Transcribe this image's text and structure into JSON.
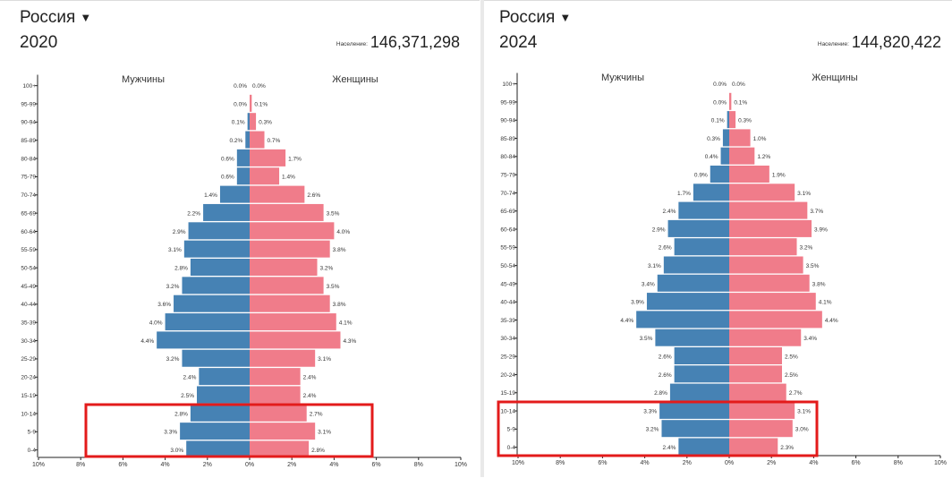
{
  "panels": [
    {
      "country": "Россия",
      "year": "2020",
      "population_label": "Население:",
      "population_value": "146,371,298"
    },
    {
      "country": "Россия",
      "year": "2024",
      "population_label": "Население:",
      "population_value": "144,820,422"
    }
  ],
  "chart_data": [
    {
      "type": "bar",
      "title": "Россия 2020",
      "orientation": "horizontal-pyramid",
      "male_label": "Мужчины",
      "female_label": "Женщины",
      "categories": [
        "100+",
        "95-99",
        "90-94",
        "85-89",
        "80-84",
        "75-79",
        "70-74",
        "65-69",
        "60-64",
        "55-59",
        "50-54",
        "45-49",
        "40-44",
        "35-39",
        "30-34",
        "25-29",
        "20-24",
        "15-19",
        "10-14",
        "5-9",
        "0-4"
      ],
      "series": [
        {
          "name": "Мужчины",
          "color": "#4682b4",
          "values": [
            0.0,
            0.0,
            0.1,
            0.2,
            0.6,
            0.6,
            1.4,
            2.2,
            2.9,
            3.1,
            2.8,
            3.2,
            3.6,
            4.0,
            4.4,
            3.2,
            2.4,
            2.5,
            2.8,
            3.3,
            3.0
          ],
          "labels": [
            "0.0%",
            "0.0%",
            "0.1%",
            "0.2%",
            "0.6%",
            "0.6%",
            "1.4%",
            "2.2%",
            "2.9%",
            "3.1%",
            "2.8%",
            "3.2%",
            "3.6%",
            "4.0%",
            "4.4%",
            "3.2%",
            "2.4%",
            "2.5%",
            "2.8%",
            "3.3%",
            "3.0%"
          ]
        },
        {
          "name": "Женщины",
          "color": "#f07c8a",
          "values": [
            0.0,
            0.1,
            0.3,
            0.7,
            1.7,
            1.4,
            2.6,
            3.5,
            4.0,
            3.8,
            3.2,
            3.5,
            3.8,
            4.1,
            4.3,
            3.1,
            2.4,
            2.4,
            2.7,
            3.1,
            2.8
          ],
          "labels": [
            "0.0%",
            "0.1%",
            "0.3%",
            "0.7%",
            "1.7%",
            "1.4%",
            "2.6%",
            "3.5%",
            "4.0%",
            "3.8%",
            "3.2%",
            "3.5%",
            "3.8%",
            "4.1%",
            "4.3%",
            "3.1%",
            "2.4%",
            "2.4%",
            "2.7%",
            "3.1%",
            "2.8%"
          ]
        }
      ],
      "x_ticks": [
        "10%",
        "8%",
        "6%",
        "4%",
        "2%",
        "0%",
        "2%",
        "4%",
        "6%",
        "8%",
        "10%"
      ],
      "xlim": [
        -10,
        10
      ],
      "highlight": {
        "categories": [
          "10-14",
          "5-9",
          "0-4"
        ],
        "color": "#e31b1b"
      }
    },
    {
      "type": "bar",
      "title": "Россия 2024",
      "orientation": "horizontal-pyramid",
      "male_label": "Мужчины",
      "female_label": "Женщины",
      "categories": [
        "100+",
        "95-99",
        "90-94",
        "85-89",
        "80-84",
        "75-79",
        "70-74",
        "65-69",
        "60-64",
        "55-59",
        "50-54",
        "45-49",
        "40-44",
        "35-39",
        "30-34",
        "25-29",
        "20-24",
        "15-19",
        "10-14",
        "5-9",
        "0-4"
      ],
      "series": [
        {
          "name": "Мужчины",
          "color": "#4682b4",
          "values": [
            0.0,
            0.0,
            0.1,
            0.3,
            0.4,
            0.9,
            1.7,
            2.4,
            2.9,
            2.6,
            3.1,
            3.4,
            3.9,
            4.4,
            3.5,
            2.6,
            2.6,
            2.8,
            3.3,
            3.2,
            2.4
          ],
          "labels": [
            "0.0%",
            "0.0%",
            "0.1%",
            "0.3%",
            "0.4%",
            "0.9%",
            "1.7%",
            "2.4%",
            "2.9%",
            "2.6%",
            "3.1%",
            "3.4%",
            "3.9%",
            "4.4%",
            "3.5%",
            "2.6%",
            "2.6%",
            "2.8%",
            "3.3%",
            "3.2%",
            "2.4%"
          ]
        },
        {
          "name": "Женщины",
          "color": "#f07c8a",
          "values": [
            0.0,
            0.1,
            0.3,
            1.0,
            1.2,
            1.9,
            3.1,
            3.7,
            3.9,
            3.2,
            3.5,
            3.8,
            4.1,
            4.4,
            3.4,
            2.5,
            2.5,
            2.7,
            3.1,
            3.0,
            2.3
          ],
          "labels": [
            "0.0%",
            "0.1%",
            "0.3%",
            "1.0%",
            "1.2%",
            "1.9%",
            "3.1%",
            "3.7%",
            "3.9%",
            "3.2%",
            "3.5%",
            "3.8%",
            "4.1%",
            "4.4%",
            "3.4%",
            "2.5%",
            "2.5%",
            "2.7%",
            "3.1%",
            "3.0%",
            "2.3%"
          ]
        }
      ],
      "x_ticks": [
        "10%",
        "8%",
        "6%",
        "4%",
        "2%",
        "0%",
        "2%",
        "4%",
        "6%",
        "8%",
        "10%"
      ],
      "xlim": [
        -10,
        10
      ],
      "highlight": {
        "categories": [
          "10-14",
          "5-9",
          "0-4"
        ],
        "color": "#e31b1b"
      }
    }
  ]
}
